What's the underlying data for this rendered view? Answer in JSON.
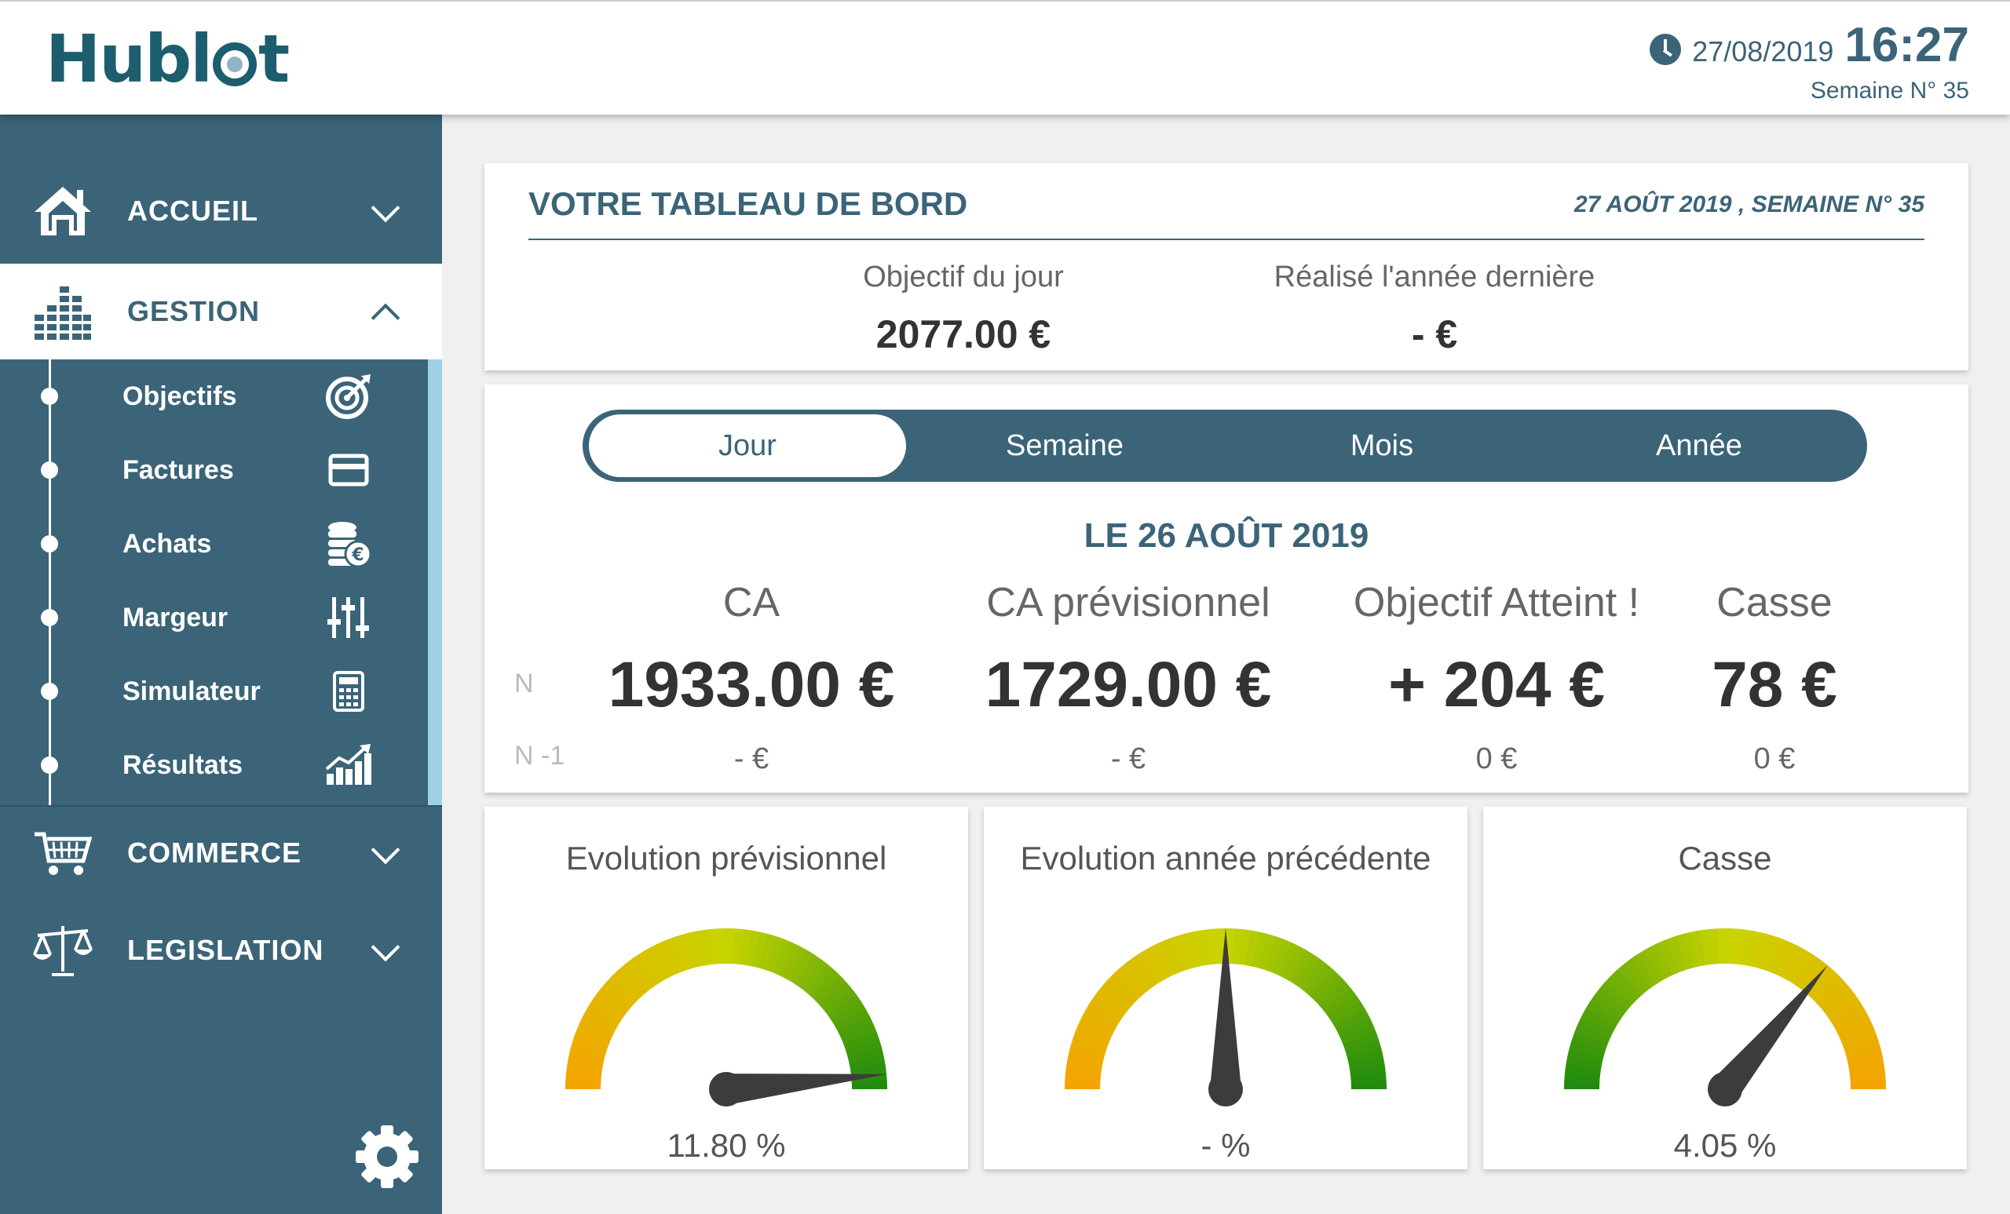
{
  "header": {
    "logo": "Hublot",
    "date": "27/08/2019",
    "time": "16:27",
    "week": "Semaine N° 35"
  },
  "sidebar": {
    "items": [
      {
        "label": "ACCUEIL",
        "icon": "home-icon"
      },
      {
        "label": "GESTION",
        "icon": "bar-chart-icon"
      },
      {
        "label": "COMMERCE",
        "icon": "cart-icon"
      },
      {
        "label": "LEGISLATION",
        "icon": "scales-icon"
      }
    ],
    "gestion_sub": [
      {
        "label": "Objectifs",
        "icon": "target-icon"
      },
      {
        "label": "Factures",
        "icon": "credit-card-icon"
      },
      {
        "label": "Achats",
        "icon": "coins-euro-icon"
      },
      {
        "label": "Margeur",
        "icon": "sliders-icon"
      },
      {
        "label": "Simulateur",
        "icon": "calculator-icon"
      },
      {
        "label": "Résultats",
        "icon": "growth-chart-icon"
      }
    ],
    "settings_icon": "gear-icon"
  },
  "dashboard": {
    "title": "VOTRE TABLEAU DE BORD",
    "date": "27 AOÛT 2019 , SEMAINE N° 35",
    "objectif_label": "Objectif du jour",
    "objectif_value": "2077.00 €",
    "realise_label": "Réalisé l'année dernière",
    "realise_value": "- €"
  },
  "period": {
    "tabs": [
      "Jour",
      "Semaine",
      "Mois",
      "Année"
    ],
    "active_tab": "Jour",
    "date_label": "LE 26 AOÛT 2019",
    "row_n": "N",
    "row_n1": "N -1",
    "columns": [
      {
        "header": "CA",
        "value": "1933.00 €",
        "previous": "- €"
      },
      {
        "header": "CA prévisionnel",
        "value": "1729.00 €",
        "previous": "- €"
      },
      {
        "header": "Objectif Atteint !",
        "value": "+ 204 €",
        "previous": "0 €"
      },
      {
        "header": "Casse",
        "value": "78 €",
        "previous": "0 €"
      }
    ]
  },
  "gauges": [
    {
      "title": "Evolution prévisionnel",
      "value": "11.80 %",
      "needle_fraction": 0.97,
      "direction": "orange-to-green"
    },
    {
      "title": "Evolution année précédente",
      "value": "- %",
      "needle_fraction": 0.5,
      "direction": "orange-to-green"
    },
    {
      "title": "Casse",
      "value": "4.05 %",
      "needle_fraction": 0.72,
      "direction": "green-to-orange"
    }
  ],
  "colors": {
    "primary": "#3b6478",
    "accent": "#9ed1e6",
    "gauge_orange": "#f5a300",
    "gauge_yellow": "#c8d400",
    "gauge_green": "#1d8a0e"
  }
}
